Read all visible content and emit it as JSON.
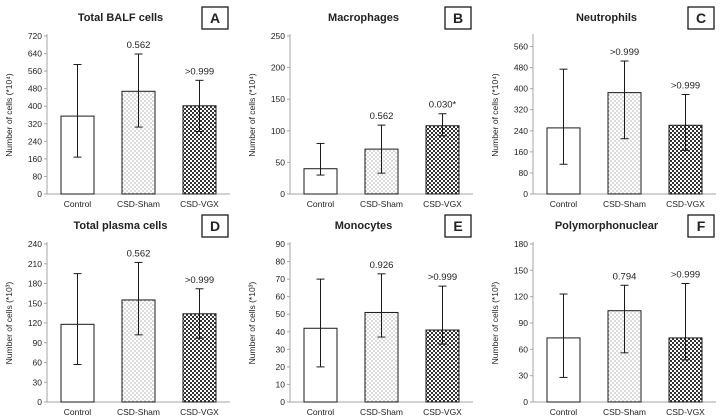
{
  "chart_data": [
    {
      "type": "bar",
      "panel": "A",
      "title": "Total BALF cells",
      "ylabel": "Number of cells (*10⁴)",
      "categories": [
        "Control",
        "CSD-Sham",
        "CSD-VGX"
      ],
      "values": [
        355,
        468,
        402
      ],
      "error_low": [
        168,
        305,
        285
      ],
      "error_high": [
        590,
        638,
        518
      ],
      "annotations": [
        "",
        "0.562",
        ">0.999"
      ],
      "ylim": [
        0,
        720
      ],
      "yticks": [
        "0",
        "80",
        "160",
        "240",
        "320",
        "400",
        "480",
        "560",
        "640",
        "720"
      ]
    },
    {
      "type": "bar",
      "panel": "B",
      "title": "Macrophages",
      "ylabel": "Number of cells (*10⁴)",
      "categories": [
        "Control",
        "CSD-Sham",
        "CSD-VGX"
      ],
      "values": [
        40,
        71,
        108
      ],
      "error_low": [
        30,
        33,
        92
      ],
      "error_high": [
        80,
        109,
        127
      ],
      "annotations": [
        "",
        "0.562",
        "0.030*"
      ],
      "ylim": [
        0,
        250
      ],
      "yticks": [
        "0",
        "50",
        "100",
        "150",
        "200",
        "250"
      ]
    },
    {
      "type": "bar",
      "panel": "C",
      "title": "Neutrophils",
      "ylabel": "Number of cells (*10⁴)",
      "categories": [
        "Control",
        "CSD-Sham",
        "CSD-VGX"
      ],
      "values": [
        251,
        385,
        261
      ],
      "error_low": [
        113,
        210,
        166
      ],
      "error_high": [
        474,
        505,
        378
      ],
      "annotations": [
        "",
        ">0.999",
        ">0.999"
      ],
      "ylim": [
        0,
        600
      ],
      "yticks": [
        "0",
        "80",
        "160",
        "240",
        "320",
        "400",
        "480",
        "560"
      ]
    },
    {
      "type": "bar",
      "panel": "D",
      "title": "Total plasma cells",
      "ylabel": "Number of cells (*10³)",
      "categories": [
        "Control",
        "CSD-Sham",
        "CSD-VGX"
      ],
      "values": [
        118,
        155,
        134
      ],
      "error_low": [
        57,
        102,
        97
      ],
      "error_high": [
        195,
        212,
        172
      ],
      "annotations": [
        "",
        "0.562",
        ">0.999"
      ],
      "ylim": [
        0,
        240
      ],
      "yticks": [
        "0",
        "30",
        "60",
        "90",
        "120",
        "150",
        "180",
        "210",
        "240"
      ]
    },
    {
      "type": "bar",
      "panel": "E",
      "title": "Monocytes",
      "ylabel": "Number of cells (*10³)",
      "categories": [
        "Control",
        "CSD-Sham",
        "CSD-VGX"
      ],
      "values": [
        42,
        51,
        41
      ],
      "error_low": [
        20,
        37,
        33
      ],
      "error_high": [
        70,
        73,
        66
      ],
      "annotations": [
        "",
        "0.926",
        ">0.999"
      ],
      "ylim": [
        0,
        90
      ],
      "yticks": [
        "0",
        "10",
        "20",
        "30",
        "40",
        "50",
        "60",
        "70",
        "80",
        "90"
      ]
    },
    {
      "type": "bar",
      "panel": "F",
      "title": "Polymorphonuclear",
      "ylabel": "Number of cells (*10³)",
      "categories": [
        "Control",
        "CSD-Sham",
        "CSD-VGX"
      ],
      "values": [
        73,
        104,
        73
      ],
      "error_low": [
        28,
        56,
        48
      ],
      "error_high": [
        123,
        133,
        135
      ],
      "annotations": [
        "",
        "0.794",
        ">0.999"
      ],
      "ylim": [
        0,
        180
      ],
      "yticks": [
        "0",
        "30",
        "60",
        "90",
        "120",
        "150",
        "180"
      ]
    }
  ],
  "colors": {
    "axis": "#a6a6a6",
    "bar_stroke": "#1a1a1a",
    "error": "#1a1a1a",
    "fill_control": "#ffffff"
  }
}
